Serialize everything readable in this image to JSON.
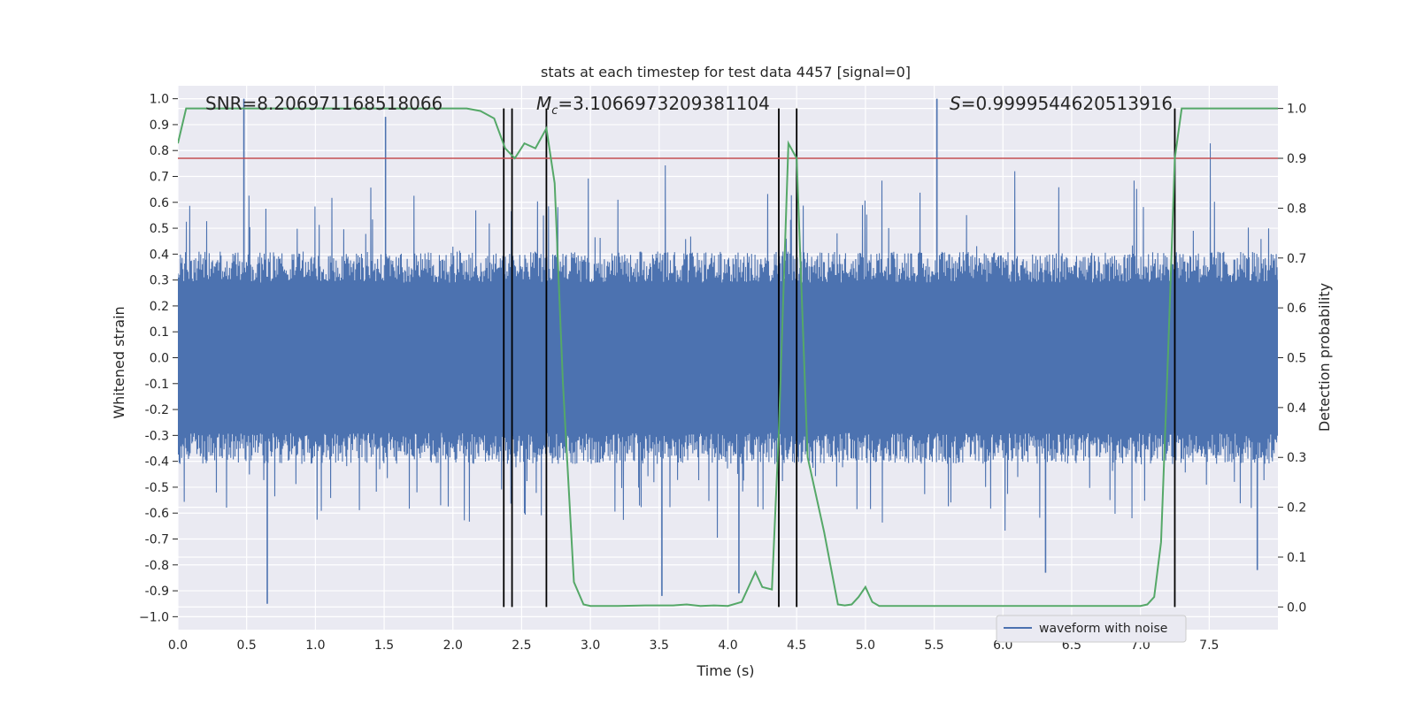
{
  "chart_data": {
    "type": "line",
    "title": "stats at each timestep for test data 4457 [signal=0]",
    "xlabel": "Time (s)",
    "ylabel": "Whitened strain",
    "ylabel_right": "Detection probability",
    "xlim": [
      0,
      8
    ],
    "ylim": [
      -1.05,
      1.05
    ],
    "ylim_right": [
      -0.0455,
      1.0455
    ],
    "xticks": [
      "0.0",
      "0.5",
      "1.0",
      "1.5",
      "2.0",
      "2.5",
      "3.0",
      "3.5",
      "4.0",
      "4.5",
      "5.0",
      "5.5",
      "6.0",
      "6.5",
      "7.0",
      "7.5"
    ],
    "yticks": [
      "1.0",
      "0.9",
      "0.8",
      "0.7",
      "0.6",
      "0.5",
      "0.4",
      "0.3",
      "0.2",
      "0.1",
      "0.0",
      "-0.1",
      "-0.2",
      "-0.3",
      "-0.4",
      "-0.5",
      "-0.6",
      "-0.7",
      "-0.8",
      "-0.9",
      "−1.0"
    ],
    "yticks_right": [
      "1.0",
      "0.9",
      "0.8",
      "0.7",
      "0.6",
      "0.5",
      "0.4",
      "0.3",
      "0.2",
      "0.1",
      "0.0"
    ],
    "grid": true,
    "legend_position": "lower-right",
    "annotations": {
      "snr": "SNR=8.206971168518066",
      "mc_symbol": "M",
      "mc_sub": "c",
      "mc_value": "=3.1066973209381104",
      "s_symbol": "S",
      "s_value": "=0.9999544620513916"
    },
    "threshold": {
      "value": 0.9,
      "axis": "right",
      "color": "#c44e52"
    },
    "vertical_lines": [
      2.37,
      2.43,
      2.68,
      4.37,
      4.5,
      7.25
    ],
    "series": [
      {
        "name": "waveform with noise",
        "color": "#4c72b0",
        "axis": "left",
        "description_of_envelope": "dense noise",
        "typical_amplitude": 0.35,
        "peak_values": [
          {
            "x": 0.48,
            "y": 1.0
          },
          {
            "x": 1.51,
            "y": 0.93
          },
          {
            "x": 5.52,
            "y": 1.0
          },
          {
            "x": 0.65,
            "y": -0.95
          },
          {
            "x": 3.52,
            "y": -0.92
          },
          {
            "x": 4.08,
            "y": -0.91
          },
          {
            "x": 6.31,
            "y": -0.83
          },
          {
            "x": 7.85,
            "y": -0.82
          }
        ]
      },
      {
        "name": "Detection probability",
        "color": "#55a868",
        "axis": "right",
        "x": [
          0.0,
          0.06,
          0.2,
          0.5,
          1.0,
          1.5,
          2.0,
          2.1,
          2.2,
          2.3,
          2.38,
          2.45,
          2.52,
          2.6,
          2.68,
          2.74,
          2.8,
          2.88,
          2.95,
          3.0,
          3.2,
          3.4,
          3.6,
          3.7,
          3.8,
          3.9,
          4.0,
          4.1,
          4.2,
          4.25,
          4.32,
          4.37,
          4.44,
          4.5,
          4.58,
          4.7,
          4.8,
          4.85,
          4.9,
          4.95,
          5.0,
          5.05,
          5.1,
          5.2,
          5.5,
          6.0,
          6.5,
          7.0,
          7.05,
          7.1,
          7.15,
          7.2,
          7.25,
          7.3,
          7.4,
          7.5,
          7.6,
          7.7,
          8.0
        ],
        "y": [
          0.93,
          1.0,
          1.0,
          1.0,
          1.0,
          1.0,
          1.0,
          1.0,
          0.995,
          0.98,
          0.92,
          0.9,
          0.93,
          0.92,
          0.96,
          0.85,
          0.45,
          0.05,
          0.005,
          0.002,
          0.002,
          0.003,
          0.003,
          0.005,
          0.002,
          0.003,
          0.002,
          0.01,
          0.07,
          0.04,
          0.035,
          0.35,
          0.93,
          0.9,
          0.3,
          0.15,
          0.005,
          0.003,
          0.005,
          0.02,
          0.04,
          0.01,
          0.002,
          0.002,
          0.002,
          0.002,
          0.002,
          0.002,
          0.005,
          0.02,
          0.13,
          0.5,
          0.9,
          1.0,
          1.0,
          1.0,
          1.0,
          1.0,
          1.0
        ]
      }
    ]
  }
}
